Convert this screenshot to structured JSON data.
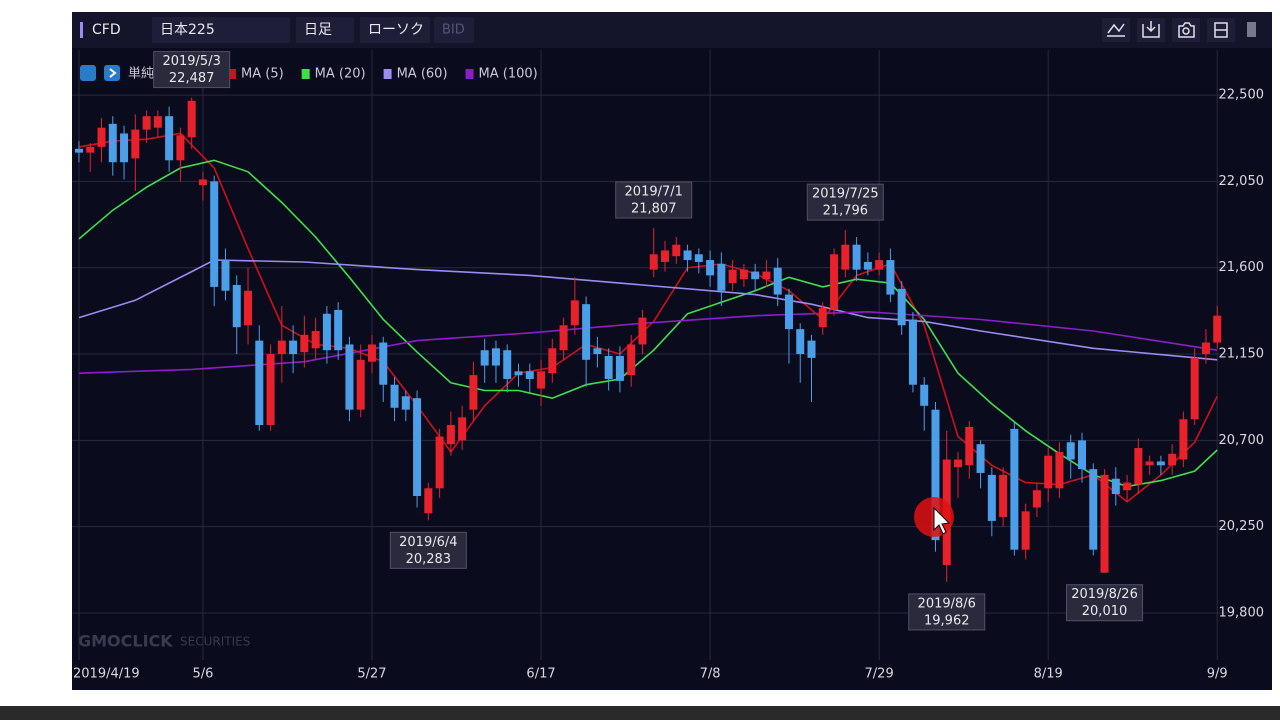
{
  "toolbar": {
    "product": "CFD",
    "symbol": "日本225",
    "period": "日足",
    "chart_style": "ローソク",
    "price_side": "BID"
  },
  "watermark": {
    "brand": "GMOCLICK",
    "suffix": "SECURITIES"
  },
  "chart_data": {
    "type": "candlestick",
    "legend_title": "単純移動平均線",
    "up_color": "#e8212b",
    "down_color": "#4a9fe8",
    "xlim": [
      -1,
      102
    ],
    "xticks": [
      {
        "value": 0,
        "label": "2019/4/19"
      },
      {
        "value": 11,
        "label": "5/6"
      },
      {
        "value": 26,
        "label": "5/27"
      },
      {
        "value": 41,
        "label": "6/17"
      },
      {
        "value": 56,
        "label": "7/8"
      },
      {
        "value": 71,
        "label": "7/29"
      },
      {
        "value": 86,
        "label": "8/19"
      },
      {
        "value": 101,
        "label": "9/9"
      }
    ],
    "ylim": [
      19555,
      22735
    ],
    "yticks": [
      {
        "value": 22500,
        "label": "22,500"
      },
      {
        "value": 22050,
        "label": "22,050"
      },
      {
        "value": 21600,
        "label": "21,600"
      },
      {
        "value": 21150,
        "label": "21,150"
      },
      {
        "value": 20700,
        "label": "20,700"
      },
      {
        "value": 20250,
        "label": "20,250"
      },
      {
        "value": 19800,
        "label": "19,800"
      }
    ],
    "grid": true,
    "open": [
      22220,
      22200,
      22230,
      22350,
      22300,
      22170,
      22320,
      22330,
      22390,
      22160,
      22280,
      22030,
      22050,
      21640,
      21510,
      21300,
      21220,
      20780,
      21150,
      21220,
      21160,
      21180,
      21360,
      21380,
      21200,
      20860,
      21110,
      21210,
      20990,
      20930,
      20920,
      20320,
      20450,
      20680,
      20700,
      20860,
      21170,
      21180,
      21170,
      21060,
      21060,
      20970,
      21050,
      21170,
      21300,
      21410,
      21180,
      21140,
      21140,
      21040,
      21200,
      21590,
      21630,
      21660,
      21690,
      21670,
      21640,
      21620,
      21520,
      21540,
      21580,
      21540,
      21600,
      21460,
      21280,
      21220,
      21290,
      21380,
      21590,
      21720,
      21630,
      21590,
      21640,
      21490,
      21330,
      20990,
      20860,
      20050,
      20560,
      20570,
      20680,
      20520,
      20300,
      20760,
      20130,
      20350,
      20450,
      20450,
      20690,
      20700,
      20550,
      20010,
      20500,
      20440,
      20470,
      20570,
      20590,
      20570,
      20600,
      20810,
      21150,
      21210
    ],
    "high": [
      22260,
      22250,
      22380,
      22390,
      22340,
      22400,
      22420,
      22420,
      22440,
      22330,
      22487,
      22100,
      22080,
      21700,
      21560,
      21600,
      21300,
      21200,
      21400,
      21300,
      21350,
      21340,
      21400,
      21420,
      21240,
      21200,
      21250,
      21240,
      21030,
      20960,
      20960,
      20480,
      20760,
      20850,
      20880,
      21110,
      21230,
      21220,
      21200,
      21100,
      21100,
      21120,
      21230,
      21340,
      21550,
      21450,
      21240,
      21180,
      21190,
      21250,
      21380,
      21807,
      21740,
      21760,
      21720,
      21700,
      21690,
      21680,
      21640,
      21620,
      21620,
      21640,
      21650,
      21490,
      21310,
      21250,
      21420,
      21700,
      21796,
      21760,
      21680,
      21680,
      21700,
      21530,
      21370,
      21030,
      20900,
      20750,
      20640,
      20800,
      20700,
      20560,
      20560,
      20800,
      20370,
      20480,
      20660,
      20690,
      20730,
      20740,
      20580,
      20550,
      20560,
      20520,
      20710,
      20620,
      20620,
      20680,
      20850,
      21180,
      21280,
      21400
    ],
    "low": [
      22150,
      22100,
      22150,
      22080,
      22060,
      22000,
      22250,
      22280,
      22100,
      22050,
      22220,
      21950,
      21400,
      21430,
      21150,
      21200,
      20750,
      20750,
      21000,
      21050,
      21080,
      21120,
      21100,
      21120,
      20800,
      20820,
      21050,
      20900,
      20800,
      20800,
      20350,
      20283,
      20400,
      20620,
      20650,
      20800,
      21000,
      21000,
      20950,
      20980,
      20950,
      20880,
      21000,
      21120,
      21250,
      20980,
      21080,
      20960,
      20950,
      20980,
      21150,
      21550,
      21580,
      21620,
      21580,
      21570,
      21500,
      21400,
      21480,
      21500,
      21480,
      21500,
      21400,
      21100,
      21000,
      20900,
      21250,
      21350,
      21550,
      21530,
      21560,
      21560,
      21420,
      21250,
      20950,
      20750,
      20120,
      19962,
      20400,
      20500,
      20450,
      20200,
      20250,
      20100,
      20080,
      20300,
      20380,
      20400,
      20500,
      20480,
      20100,
      20010,
      20360,
      20380,
      20420,
      20520,
      20520,
      20520,
      20560,
      20780,
      21100,
      21180
    ],
    "close": [
      22200,
      22230,
      22330,
      22150,
      22150,
      22320,
      22390,
      22390,
      22160,
      22290,
      22470,
      22060,
      21500,
      21480,
      21290,
      21480,
      20780,
      21150,
      21220,
      21150,
      21250,
      21270,
      21170,
      21170,
      20860,
      21120,
      21200,
      20990,
      20870,
      20860,
      20410,
      20450,
      20720,
      20780,
      20820,
      21040,
      21090,
      21090,
      21020,
      21040,
      21020,
      21060,
      21180,
      21300,
      21430,
      21120,
      21150,
      21020,
      21010,
      21200,
      21340,
      21670,
      21690,
      21720,
      21640,
      21630,
      21560,
      21480,
      21590,
      21590,
      21540,
      21580,
      21460,
      21280,
      21150,
      21130,
      21390,
      21670,
      21720,
      21590,
      21590,
      21640,
      21460,
      21300,
      20990,
      20880,
      20180,
      20600,
      20600,
      20770,
      20530,
      20280,
      20520,
      20130,
      20330,
      20440,
      20620,
      20640,
      20600,
      20550,
      20130,
      20520,
      20420,
      20480,
      20660,
      20590,
      20570,
      20630,
      20810,
      21130,
      21210,
      21350
    ],
    "series": [
      {
        "name": "MA (5)",
        "color": "#d0101a",
        "x": [
          0,
          3,
          6,
          9,
          12,
          15,
          18,
          21,
          24,
          27,
          30,
          33,
          36,
          39,
          42,
          45,
          48,
          51,
          54,
          57,
          60,
          63,
          66,
          69,
          72,
          75,
          78,
          81,
          84,
          87,
          90,
          93,
          96,
          99,
          101
        ],
        "values": [
          22230,
          22260,
          22270,
          22300,
          22120,
          21700,
          21300,
          21200,
          21180,
          21110,
          20880,
          20640,
          20880,
          21050,
          21080,
          21200,
          21150,
          21320,
          21600,
          21620,
          21570,
          21480,
          21330,
          21560,
          21620,
          21300,
          20720,
          20570,
          20480,
          20470,
          20520,
          20380,
          20520,
          20690,
          20930
        ]
      },
      {
        "name": "MA (20)",
        "color": "#3ee04a",
        "x": [
          0,
          3,
          6,
          9,
          12,
          15,
          18,
          21,
          24,
          27,
          30,
          33,
          36,
          39,
          42,
          45,
          48,
          51,
          54,
          57,
          60,
          63,
          66,
          69,
          72,
          75,
          78,
          81,
          84,
          87,
          90,
          93,
          96,
          99,
          101
        ],
        "values": [
          21750,
          21900,
          22020,
          22120,
          22160,
          22100,
          21940,
          21760,
          21550,
          21330,
          21160,
          21000,
          20960,
          20960,
          20920,
          20990,
          21020,
          21170,
          21360,
          21420,
          21480,
          21550,
          21500,
          21540,
          21520,
          21330,
          21050,
          20890,
          20750,
          20630,
          20520,
          20460,
          20490,
          20540,
          20650
        ]
      },
      {
        "name": "MA (60)",
        "color": "#9a8cf0",
        "x": [
          0,
          5,
          10,
          12,
          20,
          30,
          40,
          50,
          60,
          65,
          70,
          75,
          80,
          90,
          101
        ],
        "values": [
          21340,
          21430,
          21580,
          21640,
          21630,
          21590,
          21560,
          21510,
          21460,
          21410,
          21340,
          21320,
          21270,
          21180,
          21120
        ]
      },
      {
        "name": "MA (100)",
        "color": "#8a1fc8",
        "x": [
          0,
          10,
          20,
          30,
          40,
          50,
          60,
          70,
          80,
          90,
          101
        ],
        "values": [
          21050,
          21070,
          21110,
          21220,
          21260,
          21310,
          21350,
          21370,
          21330,
          21270,
          21170
        ]
      }
    ],
    "annotations": [
      {
        "date": "2019/5/3",
        "index": 10,
        "value": {
          "value": 22487,
          "label": "22,487"
        }
      },
      {
        "date": "2019/6/4",
        "index": 31,
        "value": {
          "value": 20283,
          "label": "20,283"
        }
      },
      {
        "date": "2019/7/1",
        "index": 51,
        "value": {
          "value": 21807,
          "label": "21,807"
        }
      },
      {
        "date": "2019/7/25",
        "index": 68,
        "value": {
          "value": 21796,
          "label": "21,796"
        }
      },
      {
        "date": "2019/8/6",
        "index": 77,
        "value": {
          "value": 19962,
          "label": "19,962"
        }
      },
      {
        "date": "2019/8/26",
        "index": 91,
        "value": {
          "value": 20010,
          "label": "20,010"
        }
      }
    ]
  }
}
